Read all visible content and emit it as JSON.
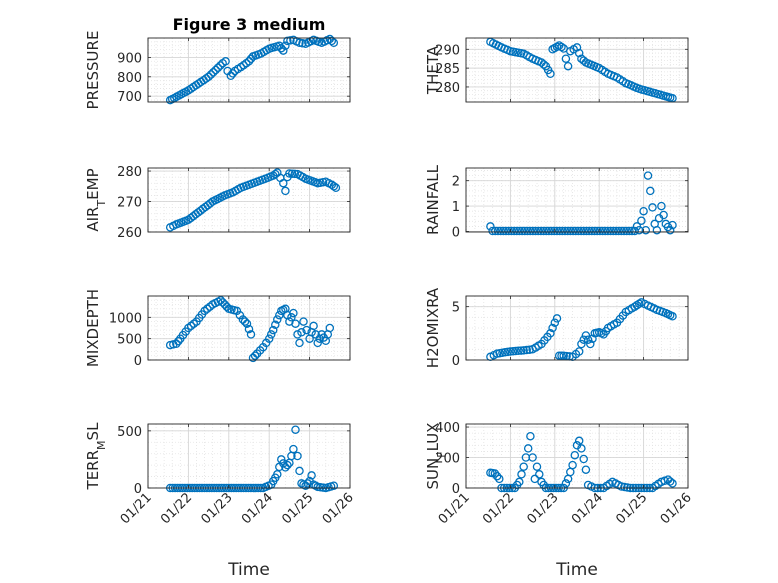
{
  "figure": {
    "title": "Figure 3 medium"
  },
  "chart_data": [
    {
      "type": "scatter",
      "title": "Figure 3 medium",
      "ylabel": "PRESSURE",
      "xlabel": "",
      "xlim": [
        0,
        5
      ],
      "ylim": [
        670,
        1000
      ],
      "yticks": [
        700,
        800,
        900
      ],
      "grid": true,
      "marker_color": "#0072bd",
      "anchors": [
        [
          0.55,
          680
        ],
        [
          0.65,
          690
        ],
        [
          1.0,
          730
        ],
        [
          1.5,
          800
        ],
        [
          1.85,
          870
        ],
        [
          1.92,
          880
        ],
        [
          1.97,
          830
        ],
        [
          2.05,
          805
        ],
        [
          2.15,
          830
        ],
        [
          2.3,
          850
        ],
        [
          2.5,
          880
        ],
        [
          2.6,
          905
        ],
        [
          2.8,
          920
        ],
        [
          3.0,
          945
        ],
        [
          3.25,
          960
        ],
        [
          3.35,
          935
        ],
        [
          3.45,
          985
        ],
        [
          3.6,
          990
        ],
        [
          3.75,
          975
        ],
        [
          3.9,
          970
        ],
        [
          4.1,
          990
        ],
        [
          4.3,
          975
        ],
        [
          4.5,
          995
        ],
        [
          4.6,
          975
        ]
      ]
    },
    {
      "type": "scatter",
      "ylabel": "THETA",
      "xlabel": "",
      "xlim": [
        0,
        5
      ],
      "ylim": [
        276,
        293
      ],
      "yticks": [
        280,
        285,
        290
      ],
      "grid": true,
      "marker_color": "#0072bd",
      "anchors": [
        [
          0.55,
          292
        ],
        [
          0.8,
          290.5
        ],
        [
          1.0,
          289.5
        ],
        [
          1.3,
          288.8
        ],
        [
          1.5,
          287.5
        ],
        [
          1.7,
          286.5
        ],
        [
          1.8,
          285.5
        ],
        [
          1.9,
          283.5
        ],
        [
          1.95,
          290
        ],
        [
          2.1,
          291
        ],
        [
          2.2,
          290.2
        ],
        [
          2.25,
          287.5
        ],
        [
          2.3,
          285.5
        ],
        [
          2.35,
          289.5
        ],
        [
          2.5,
          290.5
        ],
        [
          2.6,
          287.5
        ],
        [
          2.7,
          286.5
        ],
        [
          3.0,
          285
        ],
        [
          3.2,
          283.5
        ],
        [
          3.4,
          282.5
        ],
        [
          3.6,
          281
        ],
        [
          3.9,
          279.5
        ],
        [
          4.2,
          278.5
        ],
        [
          4.5,
          277.5
        ],
        [
          4.65,
          277
        ]
      ]
    },
    {
      "type": "scatter",
      "ylabel": "AIR_TEMP",
      "xlabel": "",
      "xlim": [
        0,
        5
      ],
      "ylim": [
        260,
        281
      ],
      "yticks": [
        260,
        270,
        280
      ],
      "grid": true,
      "marker_color": "#0072bd",
      "anchors": [
        [
          0.55,
          261.5
        ],
        [
          0.7,
          262.5
        ],
        [
          1.0,
          264
        ],
        [
          1.3,
          267
        ],
        [
          1.6,
          270
        ],
        [
          1.9,
          272
        ],
        [
          2.1,
          273
        ],
        [
          2.3,
          274.5
        ],
        [
          2.5,
          275.5
        ],
        [
          2.7,
          276.5
        ],
        [
          2.9,
          277.5
        ],
        [
          3.1,
          278.5
        ],
        [
          3.2,
          279.5
        ],
        [
          3.35,
          276
        ],
        [
          3.4,
          273.5
        ],
        [
          3.45,
          278
        ],
        [
          3.5,
          279.2
        ],
        [
          3.7,
          279
        ],
        [
          3.9,
          277.5
        ],
        [
          4.2,
          276
        ],
        [
          4.4,
          276.5
        ],
        [
          4.55,
          275.5
        ],
        [
          4.65,
          274.5
        ]
      ]
    },
    {
      "type": "scatter",
      "ylabel": "RAINFALL",
      "xlabel": "",
      "xlim": [
        0,
        5
      ],
      "ylim": [
        -0.02,
        2.5
      ],
      "yticks": [
        0,
        1,
        2
      ],
      "grid": true,
      "marker_color": "#0072bd",
      "anchors": [
        [
          0.55,
          0.2
        ],
        [
          0.6,
          0.02
        ],
        [
          3.8,
          0.02
        ],
        [
          3.85,
          0.2
        ],
        [
          3.9,
          0.05
        ],
        [
          4.0,
          0.8
        ],
        [
          4.05,
          0.05
        ],
        [
          4.1,
          2.2
        ],
        [
          4.15,
          1.6
        ],
        [
          4.25,
          0.3
        ],
        [
          4.3,
          0.05
        ],
        [
          4.4,
          1.0
        ],
        [
          4.5,
          0.3
        ],
        [
          4.6,
          0.05
        ],
        [
          4.65,
          0.25
        ]
      ]
    },
    {
      "type": "scatter",
      "ylabel": "MIXDEPTH",
      "xlabel": "",
      "xlim": [
        0,
        5
      ],
      "ylim": [
        0,
        1500
      ],
      "yticks": [
        0,
        500,
        1000
      ],
      "grid": true,
      "marker_color": "#0072bd",
      "anchors": [
        [
          0.55,
          350
        ],
        [
          0.7,
          380
        ],
        [
          0.8,
          500
        ],
        [
          1.0,
          750
        ],
        [
          1.2,
          900
        ],
        [
          1.4,
          1150
        ],
        [
          1.6,
          1300
        ],
        [
          1.8,
          1400
        ],
        [
          1.9,
          1300
        ],
        [
          2.0,
          1200
        ],
        [
          2.2,
          1150
        ],
        [
          2.35,
          950
        ],
        [
          2.45,
          850
        ],
        [
          2.55,
          600
        ],
        [
          2.6,
          50
        ],
        [
          2.7,
          150
        ],
        [
          2.85,
          300
        ],
        [
          3.0,
          500
        ],
        [
          3.1,
          700
        ],
        [
          3.2,
          950
        ],
        [
          3.3,
          1150
        ],
        [
          3.4,
          1200
        ],
        [
          3.5,
          900
        ],
        [
          3.6,
          1100
        ],
        [
          3.7,
          600
        ],
        [
          3.75,
          400
        ],
        [
          3.85,
          900
        ],
        [
          4.0,
          500
        ],
        [
          4.1,
          800
        ],
        [
          4.2,
          400
        ],
        [
          4.3,
          600
        ],
        [
          4.4,
          450
        ],
        [
          4.5,
          750
        ]
      ]
    },
    {
      "type": "scatter",
      "ylabel": "H2OMIXRA",
      "xlabel": "",
      "xlim": [
        0,
        5
      ],
      "ylim": [
        0,
        6
      ],
      "yticks": [
        0,
        5
      ],
      "grid": true,
      "marker_color": "#0072bd",
      "anchors": [
        [
          0.55,
          0.3
        ],
        [
          0.7,
          0.6
        ],
        [
          1.0,
          0.8
        ],
        [
          1.3,
          0.9
        ],
        [
          1.5,
          1.0
        ],
        [
          1.7,
          1.5
        ],
        [
          1.9,
          2.5
        ],
        [
          2.0,
          3.5
        ],
        [
          2.05,
          3.9
        ],
        [
          2.1,
          0.4
        ],
        [
          2.2,
          0.4
        ],
        [
          2.4,
          0.3
        ],
        [
          2.55,
          0.8
        ],
        [
          2.6,
          1.5
        ],
        [
          2.7,
          2.3
        ],
        [
          2.8,
          1.5
        ],
        [
          2.9,
          2.5
        ],
        [
          3.0,
          2.6
        ],
        [
          3.1,
          2.4
        ],
        [
          3.2,
          3.0
        ],
        [
          3.4,
          3.5
        ],
        [
          3.6,
          4.5
        ],
        [
          3.8,
          5.0
        ],
        [
          3.95,
          5.4
        ],
        [
          4.1,
          5.1
        ],
        [
          4.3,
          4.7
        ],
        [
          4.5,
          4.4
        ],
        [
          4.65,
          4.1
        ]
      ]
    },
    {
      "type": "scatter",
      "ylabel": "TERR_MSL",
      "xlabel": "Time",
      "xlim": [
        0,
        5
      ],
      "ylim": [
        0,
        560
      ],
      "yticks": [
        0,
        500
      ],
      "grid": true,
      "marker_color": "#0072bd",
      "xticklabels": [
        "01/21",
        "01/22",
        "01/23",
        "01/24",
        "01/25",
        "01/26"
      ],
      "anchors": [
        [
          0.55,
          0
        ],
        [
          2.85,
          0
        ],
        [
          3.05,
          30
        ],
        [
          3.2,
          120
        ],
        [
          3.3,
          250
        ],
        [
          3.4,
          180
        ],
        [
          3.5,
          220
        ],
        [
          3.6,
          340
        ],
        [
          3.65,
          510
        ],
        [
          3.7,
          280
        ],
        [
          3.75,
          150
        ],
        [
          3.8,
          40
        ],
        [
          3.9,
          20
        ],
        [
          4.0,
          60
        ],
        [
          4.05,
          110
        ],
        [
          4.1,
          30
        ],
        [
          4.2,
          10
        ],
        [
          4.4,
          0
        ],
        [
          4.6,
          20
        ]
      ]
    },
    {
      "type": "scatter",
      "ylabel": "SUN_FLUX",
      "xlabel": "Time",
      "xlim": [
        0,
        5
      ],
      "ylim": [
        0,
        420
      ],
      "yticks": [
        0,
        200,
        400
      ],
      "grid": true,
      "marker_color": "#0072bd",
      "xticklabels": [
        "01/21",
        "01/22",
        "01/23",
        "01/24",
        "01/25",
        "01/26"
      ],
      "anchors": [
        [
          0.55,
          100
        ],
        [
          0.65,
          95
        ],
        [
          0.75,
          60
        ],
        [
          0.8,
          0
        ],
        [
          1.1,
          0
        ],
        [
          1.2,
          40
        ],
        [
          1.3,
          140
        ],
        [
          1.4,
          260
        ],
        [
          1.45,
          340
        ],
        [
          1.5,
          200
        ],
        [
          1.55,
          60
        ],
        [
          1.6,
          140
        ],
        [
          1.7,
          40
        ],
        [
          1.8,
          0
        ],
        [
          2.2,
          0
        ],
        [
          2.3,
          60
        ],
        [
          2.4,
          150
        ],
        [
          2.5,
          280
        ],
        [
          2.55,
          310
        ],
        [
          2.6,
          260
        ],
        [
          2.7,
          120
        ],
        [
          2.75,
          20
        ],
        [
          2.9,
          0
        ],
        [
          3.1,
          0
        ],
        [
          3.3,
          40
        ],
        [
          3.5,
          10
        ],
        [
          3.7,
          0
        ],
        [
          4.2,
          0
        ],
        [
          4.4,
          40
        ],
        [
          4.55,
          55
        ],
        [
          4.65,
          30
        ]
      ]
    }
  ]
}
